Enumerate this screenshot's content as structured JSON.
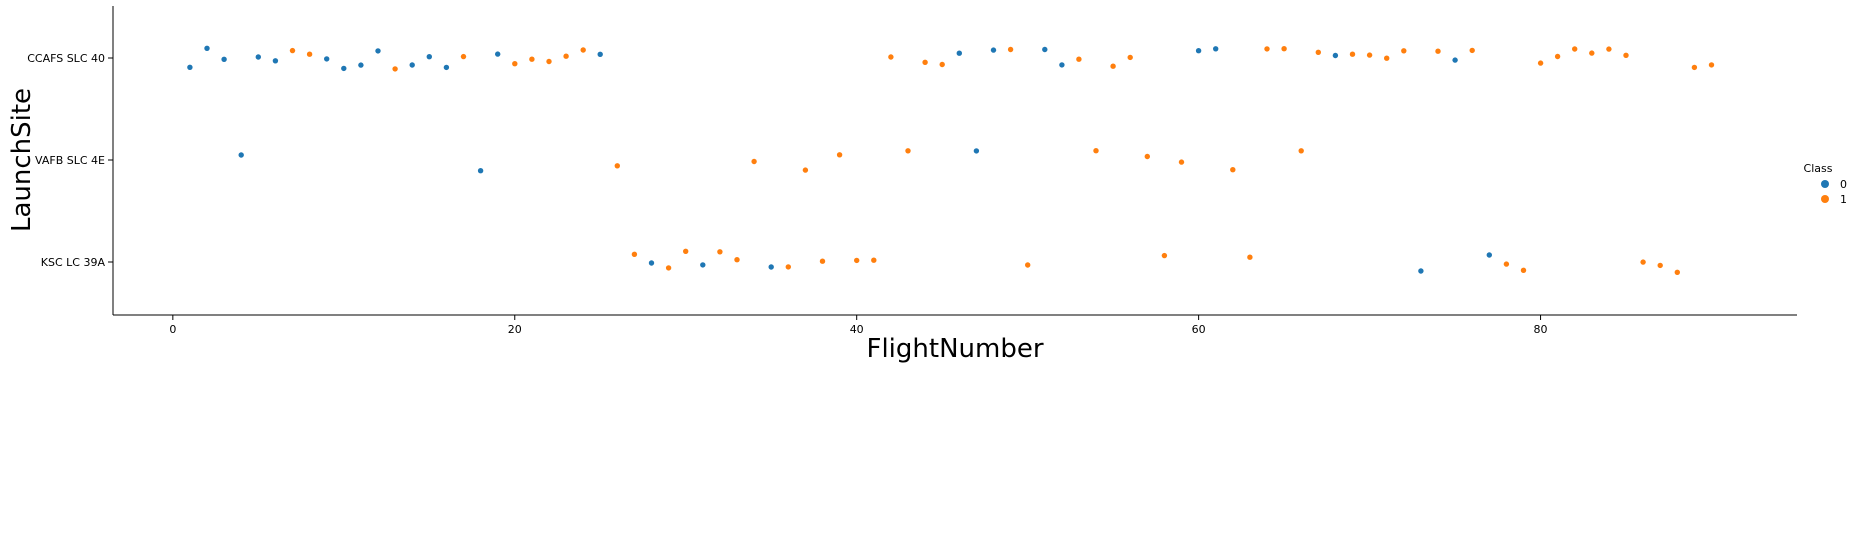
{
  "chart_data": {
    "type": "scatter",
    "xlabel": "FlightNumber",
    "ylabel": "LaunchSite",
    "x_ticks": [
      0,
      20,
      40,
      60,
      80
    ],
    "xlim": [
      -3.5,
      95
    ],
    "categories": [
      "CCAFS SLC 40",
      "VAFB SLC 4E",
      "KSC LC 39A"
    ],
    "legend": {
      "title": "Class",
      "placement": "right",
      "entries": [
        {
          "label": "0",
          "color": "#1f77b4"
        },
        {
          "label": "1",
          "color": "#ff7f0e"
        }
      ]
    },
    "points": [
      {
        "x": 1,
        "site": "CCAFS SLC 40",
        "class": 0
      },
      {
        "x": 2,
        "site": "CCAFS SLC 40",
        "class": 0
      },
      {
        "x": 3,
        "site": "CCAFS SLC 40",
        "class": 0
      },
      {
        "x": 4,
        "site": "VAFB SLC 4E",
        "class": 0
      },
      {
        "x": 5,
        "site": "CCAFS SLC 40",
        "class": 0
      },
      {
        "x": 6,
        "site": "CCAFS SLC 40",
        "class": 0
      },
      {
        "x": 7,
        "site": "CCAFS SLC 40",
        "class": 1
      },
      {
        "x": 8,
        "site": "CCAFS SLC 40",
        "class": 1
      },
      {
        "x": 9,
        "site": "CCAFS SLC 40",
        "class": 0
      },
      {
        "x": 10,
        "site": "CCAFS SLC 40",
        "class": 0
      },
      {
        "x": 11,
        "site": "CCAFS SLC 40",
        "class": 0
      },
      {
        "x": 12,
        "site": "CCAFS SLC 40",
        "class": 0
      },
      {
        "x": 13,
        "site": "CCAFS SLC 40",
        "class": 1
      },
      {
        "x": 14,
        "site": "CCAFS SLC 40",
        "class": 0
      },
      {
        "x": 15,
        "site": "CCAFS SLC 40",
        "class": 0
      },
      {
        "x": 16,
        "site": "CCAFS SLC 40",
        "class": 0
      },
      {
        "x": 17,
        "site": "CCAFS SLC 40",
        "class": 1
      },
      {
        "x": 18,
        "site": "VAFB SLC 4E",
        "class": 0
      },
      {
        "x": 19,
        "site": "CCAFS SLC 40",
        "class": 0
      },
      {
        "x": 20,
        "site": "CCAFS SLC 40",
        "class": 1
      },
      {
        "x": 21,
        "site": "CCAFS SLC 40",
        "class": 1
      },
      {
        "x": 22,
        "site": "CCAFS SLC 40",
        "class": 1
      },
      {
        "x": 23,
        "site": "CCAFS SLC 40",
        "class": 1
      },
      {
        "x": 24,
        "site": "CCAFS SLC 40",
        "class": 1
      },
      {
        "x": 25,
        "site": "CCAFS SLC 40",
        "class": 0
      },
      {
        "x": 26,
        "site": "VAFB SLC 4E",
        "class": 1
      },
      {
        "x": 27,
        "site": "KSC LC 39A",
        "class": 1
      },
      {
        "x": 28,
        "site": "KSC LC 39A",
        "class": 0
      },
      {
        "x": 29,
        "site": "KSC LC 39A",
        "class": 1
      },
      {
        "x": 30,
        "site": "KSC LC 39A",
        "class": 1
      },
      {
        "x": 31,
        "site": "KSC LC 39A",
        "class": 0
      },
      {
        "x": 32,
        "site": "KSC LC 39A",
        "class": 1
      },
      {
        "x": 33,
        "site": "KSC LC 39A",
        "class": 1
      },
      {
        "x": 34,
        "site": "VAFB SLC 4E",
        "class": 1
      },
      {
        "x": 35,
        "site": "KSC LC 39A",
        "class": 0
      },
      {
        "x": 36,
        "site": "KSC LC 39A",
        "class": 1
      },
      {
        "x": 37,
        "site": "VAFB SLC 4E",
        "class": 1
      },
      {
        "x": 38,
        "site": "KSC LC 39A",
        "class": 1
      },
      {
        "x": 39,
        "site": "VAFB SLC 4E",
        "class": 1
      },
      {
        "x": 40,
        "site": "KSC LC 39A",
        "class": 1
      },
      {
        "x": 41,
        "site": "KSC LC 39A",
        "class": 1
      },
      {
        "x": 42,
        "site": "CCAFS SLC 40",
        "class": 1
      },
      {
        "x": 43,
        "site": "VAFB SLC 4E",
        "class": 1
      },
      {
        "x": 44,
        "site": "CCAFS SLC 40",
        "class": 1
      },
      {
        "x": 45,
        "site": "CCAFS SLC 40",
        "class": 1
      },
      {
        "x": 46,
        "site": "CCAFS SLC 40",
        "class": 0
      },
      {
        "x": 47,
        "site": "VAFB SLC 4E",
        "class": 0
      },
      {
        "x": 48,
        "site": "CCAFS SLC 40",
        "class": 0
      },
      {
        "x": 49,
        "site": "CCAFS SLC 40",
        "class": 1
      },
      {
        "x": 50,
        "site": "KSC LC 39A",
        "class": 1
      },
      {
        "x": 51,
        "site": "CCAFS SLC 40",
        "class": 0
      },
      {
        "x": 52,
        "site": "CCAFS SLC 40",
        "class": 0
      },
      {
        "x": 53,
        "site": "CCAFS SLC 40",
        "class": 1
      },
      {
        "x": 54,
        "site": "VAFB SLC 4E",
        "class": 1
      },
      {
        "x": 55,
        "site": "CCAFS SLC 40",
        "class": 1
      },
      {
        "x": 56,
        "site": "CCAFS SLC 40",
        "class": 1
      },
      {
        "x": 57,
        "site": "VAFB SLC 4E",
        "class": 1
      },
      {
        "x": 58,
        "site": "KSC LC 39A",
        "class": 1
      },
      {
        "x": 59,
        "site": "VAFB SLC 4E",
        "class": 1
      },
      {
        "x": 60,
        "site": "CCAFS SLC 40",
        "class": 0
      },
      {
        "x": 61,
        "site": "CCAFS SLC 40",
        "class": 0
      },
      {
        "x": 62,
        "site": "VAFB SLC 4E",
        "class": 1
      },
      {
        "x": 63,
        "site": "KSC LC 39A",
        "class": 1
      },
      {
        "x": 64,
        "site": "CCAFS SLC 40",
        "class": 1
      },
      {
        "x": 65,
        "site": "CCAFS SLC 40",
        "class": 1
      },
      {
        "x": 66,
        "site": "VAFB SLC 4E",
        "class": 1
      },
      {
        "x": 67,
        "site": "CCAFS SLC 40",
        "class": 1
      },
      {
        "x": 68,
        "site": "CCAFS SLC 40",
        "class": 0
      },
      {
        "x": 69,
        "site": "CCAFS SLC 40",
        "class": 1
      },
      {
        "x": 70,
        "site": "CCAFS SLC 40",
        "class": 1
      },
      {
        "x": 71,
        "site": "CCAFS SLC 40",
        "class": 1
      },
      {
        "x": 72,
        "site": "CCAFS SLC 40",
        "class": 1
      },
      {
        "x": 73,
        "site": "KSC LC 39A",
        "class": 0
      },
      {
        "x": 74,
        "site": "CCAFS SLC 40",
        "class": 1
      },
      {
        "x": 75,
        "site": "CCAFS SLC 40",
        "class": 0
      },
      {
        "x": 76,
        "site": "CCAFS SLC 40",
        "class": 1
      },
      {
        "x": 77,
        "site": "KSC LC 39A",
        "class": 0
      },
      {
        "x": 78,
        "site": "KSC LC 39A",
        "class": 1
      },
      {
        "x": 79,
        "site": "KSC LC 39A",
        "class": 1
      },
      {
        "x": 80,
        "site": "CCAFS SLC 40",
        "class": 1
      },
      {
        "x": 81,
        "site": "CCAFS SLC 40",
        "class": 1
      },
      {
        "x": 82,
        "site": "CCAFS SLC 40",
        "class": 1
      },
      {
        "x": 83,
        "site": "CCAFS SLC 40",
        "class": 1
      },
      {
        "x": 84,
        "site": "CCAFS SLC 40",
        "class": 1
      },
      {
        "x": 85,
        "site": "CCAFS SLC 40",
        "class": 1
      },
      {
        "x": 86,
        "site": "KSC LC 39A",
        "class": 1
      },
      {
        "x": 87,
        "site": "KSC LC 39A",
        "class": 1
      },
      {
        "x": 88,
        "site": "KSC LC 39A",
        "class": 1
      },
      {
        "x": 89,
        "site": "CCAFS SLC 40",
        "class": 1
      },
      {
        "x": 90,
        "site": "CCAFS SLC 40",
        "class": 1
      }
    ]
  }
}
